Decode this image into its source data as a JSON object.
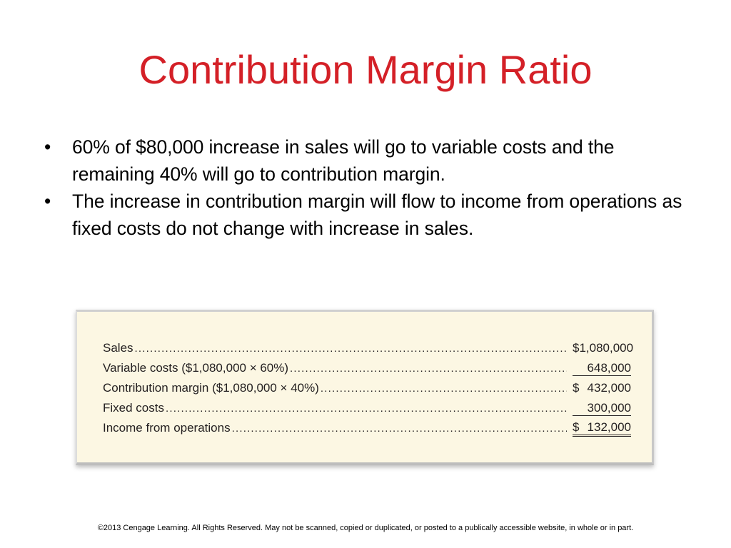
{
  "slide": {
    "title": "Contribution Margin Ratio",
    "bullets": [
      "60% of $80,000 increase in sales will go to variable costs and the remaining 40% will go to contribution margin.",
      "The increase in contribution margin will flow to income from operations as fixed costs do not change with increase in sales."
    ],
    "bullet_symbol": "•",
    "title_color": "#d42027",
    "panel_color": "#fcf7e3",
    "table": {
      "rows": [
        {
          "label": "Sales",
          "currency": "",
          "amount": "$1,080,000",
          "rule": "none"
        },
        {
          "label": "Variable costs ($1,080,000 × 60%)",
          "currency": "",
          "amount": "648,000",
          "rule": "single"
        },
        {
          "label": "Contribution margin ($1,080,000 × 40%)",
          "currency": "$",
          "amount": "432,000",
          "rule": "none"
        },
        {
          "label": "Fixed costs",
          "currency": "",
          "amount": "300,000",
          "rule": "single"
        },
        {
          "label": "Income from operations",
          "currency": "$",
          "amount": "132,000",
          "rule": "double"
        }
      ]
    },
    "footer": "©2013 Cengage Learning. All Rights Reserved. May not be scanned, copied or duplicated, or posted to a publically accessible website, in whole or in part."
  }
}
